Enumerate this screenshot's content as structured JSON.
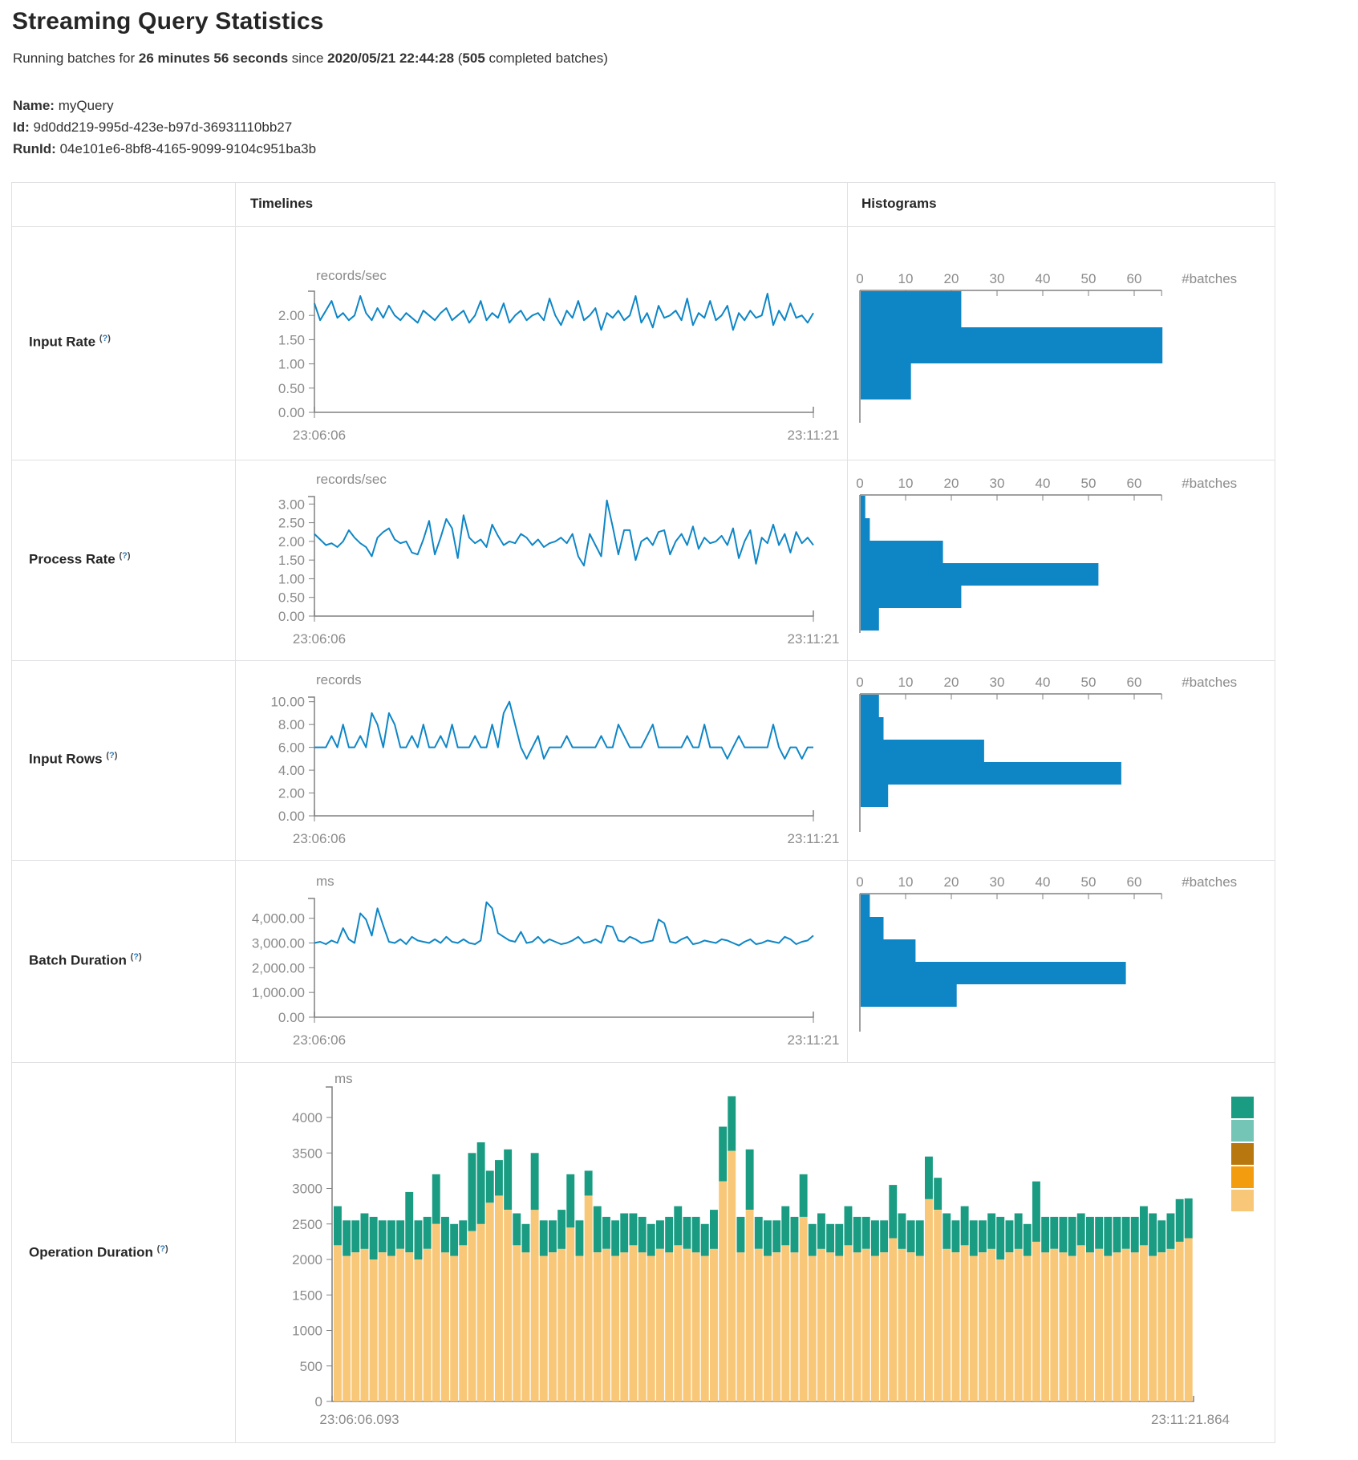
{
  "page": {
    "title": "Streaming Query Statistics",
    "subtitle": {
      "prefix": "Running batches for ",
      "duration": "26 minutes 56 seconds",
      "middle": " since ",
      "since": "2020/05/21 22:44:28",
      "paren_open": " (",
      "completed_count": "505",
      "suffix": " completed batches)"
    },
    "meta": {
      "name_label": "Name:",
      "name_value": "myQuery",
      "id_label": "Id:",
      "id_value": "9d0dd219-995d-423e-b97d-36931110bb27",
      "runid_label": "RunId:",
      "runid_value": "04e101e6-8bf8-4165-9099-9104c951ba3b"
    }
  },
  "table": {
    "col_timelines": "Timelines",
    "col_histograms": "Histograms",
    "help": {
      "open": "(",
      "mark": "?",
      "close": ")"
    },
    "rows": [
      {
        "label": "Input Rate"
      },
      {
        "label": "Process Rate"
      },
      {
        "label": "Input Rows"
      },
      {
        "label": "Batch Duration"
      },
      {
        "label": "Operation Duration"
      }
    ]
  },
  "colors": {
    "line_blue": "#0e86c6",
    "bar_blue": "#0e86c6",
    "axis_gray": "#808080",
    "text_gray": "#8b8b8b",
    "border_gray": "#e1e1e5"
  },
  "chart_data": [
    {
      "row": "Input Rate",
      "timeline": {
        "type": "line",
        "unit": "records/sec",
        "x_start": "23:06:06",
        "x_end": "23:11:21",
        "ylim": [
          0,
          2.5
        ],
        "ytick_values": [
          0,
          0.5,
          1,
          1.5,
          2
        ],
        "ytick_labels": [
          "0.00",
          "0.50",
          "1.00",
          "1.50",
          "2.00"
        ],
        "values": [
          2.25,
          1.9,
          2.1,
          2.3,
          1.95,
          2.05,
          1.9,
          2.0,
          2.4,
          2.05,
          1.9,
          2.15,
          1.95,
          2.2,
          2.0,
          1.9,
          2.05,
          1.95,
          1.85,
          2.1,
          2.0,
          1.9,
          2.05,
          2.15,
          1.9,
          2.0,
          2.1,
          1.85,
          2.0,
          2.3,
          1.9,
          2.05,
          1.95,
          2.25,
          1.85,
          2.0,
          2.1,
          1.9,
          2.0,
          2.05,
          1.9,
          2.35,
          2.0,
          1.8,
          2.1,
          1.95,
          2.3,
          1.9,
          2.0,
          2.15,
          1.7,
          2.05,
          1.95,
          2.1,
          1.9,
          2.0,
          2.4,
          1.85,
          2.05,
          1.75,
          2.2,
          1.95,
          2.0,
          2.1,
          1.9,
          2.35,
          1.8,
          2.05,
          1.95,
          2.3,
          1.9,
          2.0,
          2.2,
          1.7,
          2.05,
          1.9,
          2.1,
          1.95,
          2.0,
          2.45,
          1.8,
          2.1,
          1.9,
          2.25,
          1.95,
          2.0,
          1.85,
          2.05
        ]
      },
      "histogram": {
        "type": "bar",
        "orientation": "horizontal",
        "xlabel": "#batches",
        "xtick_values": [
          0,
          10,
          20,
          30,
          40,
          50,
          60
        ],
        "xtick_labels": [
          "0",
          "10",
          "20",
          "30",
          "40",
          "50",
          "60"
        ],
        "axis_max": 66,
        "values": [
          22,
          66,
          11
        ]
      }
    },
    {
      "row": "Process Rate",
      "timeline": {
        "type": "line",
        "unit": "records/sec",
        "x_start": "23:06:06",
        "x_end": "23:11:21",
        "ylim": [
          0,
          3.2
        ],
        "ytick_values": [
          0,
          0.5,
          1,
          1.5,
          2,
          2.5,
          3
        ],
        "ytick_labels": [
          "0.00",
          "0.50",
          "1.00",
          "1.50",
          "2.00",
          "2.50",
          "3.00"
        ],
        "values": [
          2.2,
          2.05,
          1.9,
          1.95,
          1.85,
          2.0,
          2.3,
          2.1,
          1.95,
          1.85,
          1.6,
          2.1,
          2.25,
          2.35,
          2.05,
          1.95,
          2.0,
          1.7,
          1.65,
          2.05,
          2.55,
          1.65,
          2.1,
          2.6,
          2.35,
          1.55,
          2.7,
          2.1,
          1.95,
          2.05,
          1.85,
          2.45,
          2.15,
          1.9,
          2.0,
          1.95,
          2.2,
          2.1,
          1.9,
          2.05,
          1.85,
          1.95,
          2.0,
          2.1,
          1.95,
          2.2,
          1.6,
          1.35,
          2.2,
          1.9,
          1.6,
          3.1,
          2.4,
          1.65,
          2.3,
          2.3,
          1.5,
          2.0,
          2.1,
          1.9,
          2.25,
          2.3,
          1.65,
          2.0,
          2.2,
          1.9,
          2.4,
          1.8,
          2.1,
          1.95,
          2.0,
          2.15,
          1.9,
          2.35,
          1.55,
          2.0,
          2.3,
          1.4,
          2.1,
          1.95,
          2.45,
          1.9,
          2.2,
          1.7,
          2.25,
          1.95,
          2.1,
          1.9
        ]
      },
      "histogram": {
        "type": "bar",
        "orientation": "horizontal",
        "xlabel": "#batches",
        "xtick_values": [
          0,
          10,
          20,
          30,
          40,
          50,
          60
        ],
        "xtick_labels": [
          "0",
          "10",
          "20",
          "30",
          "40",
          "50",
          "60"
        ],
        "axis_max": 66,
        "values": [
          1,
          2,
          18,
          52,
          22,
          4
        ]
      }
    },
    {
      "row": "Input Rows",
      "timeline": {
        "type": "line",
        "unit": "records",
        "x_start": "23:06:06",
        "x_end": "23:11:21",
        "ylim": [
          0,
          10.4
        ],
        "ytick_values": [
          0,
          2,
          4,
          6,
          8,
          10
        ],
        "ytick_labels": [
          "0.00",
          "2.00",
          "4.00",
          "6.00",
          "8.00",
          "10.00"
        ],
        "values": [
          6,
          6,
          6,
          7,
          6,
          8,
          6,
          6,
          7,
          6,
          9,
          8,
          6,
          9,
          8,
          6,
          6,
          7,
          6,
          8,
          6,
          6,
          7,
          6,
          8,
          6,
          6,
          6,
          7,
          6,
          6,
          8,
          6,
          9,
          10,
          8,
          6,
          5,
          6,
          7,
          5,
          6,
          6,
          6,
          7,
          6,
          6,
          6,
          6,
          6,
          7,
          6,
          6,
          8,
          7,
          6,
          6,
          6,
          7,
          8,
          6,
          6,
          6,
          6,
          6,
          7,
          6,
          6,
          8,
          6,
          6,
          6,
          5,
          6,
          7,
          6,
          6,
          6,
          6,
          6,
          8,
          6,
          5,
          6,
          6,
          5,
          6,
          6
        ]
      },
      "histogram": {
        "type": "bar",
        "orientation": "horizontal",
        "xlabel": "#batches",
        "xtick_values": [
          0,
          10,
          20,
          30,
          40,
          50,
          60
        ],
        "xtick_labels": [
          "0",
          "10",
          "20",
          "30",
          "40",
          "50",
          "60"
        ],
        "axis_max": 66,
        "values": [
          4,
          5,
          27,
          57,
          6
        ]
      }
    },
    {
      "row": "Batch Duration",
      "timeline": {
        "type": "line",
        "unit": "ms",
        "x_start": "23:06:06",
        "x_end": "23:11:21",
        "ylim": [
          0,
          4800
        ],
        "ytick_values": [
          0,
          1000,
          2000,
          3000,
          4000
        ],
        "ytick_labels": [
          "0.00",
          "1,000.00",
          "2,000.00",
          "3,000.00",
          "4,000.00"
        ],
        "values": [
          3000,
          3050,
          2950,
          3100,
          3000,
          3600,
          3150,
          3000,
          4200,
          3950,
          3300,
          4400,
          3700,
          3050,
          3000,
          3150,
          2950,
          3250,
          3100,
          3050,
          3000,
          3150,
          3000,
          3250,
          3050,
          3000,
          3150,
          3000,
          2950,
          3100,
          4650,
          4400,
          3400,
          3250,
          3100,
          3050,
          3450,
          3000,
          3050,
          3250,
          3000,
          3150,
          3050,
          2950,
          3000,
          3100,
          3250,
          3000,
          3050,
          3150,
          3000,
          3700,
          3650,
          3100,
          3050,
          3250,
          3150,
          3000,
          3050,
          3100,
          3950,
          3800,
          3050,
          3000,
          3150,
          3250,
          2950,
          3000,
          3100,
          3050,
          3000,
          3150,
          3100,
          3000,
          2900,
          3050,
          3150,
          2950,
          3000,
          3100,
          3050,
          3000,
          3250,
          3150,
          2950,
          3050,
          3100,
          3300
        ]
      },
      "histogram": {
        "type": "bar",
        "orientation": "horizontal",
        "xlabel": "#batches",
        "xtick_values": [
          0,
          10,
          20,
          30,
          40,
          50,
          60
        ],
        "xtick_labels": [
          "0",
          "10",
          "20",
          "30",
          "40",
          "50",
          "60"
        ],
        "axis_max": 66,
        "values": [
          2,
          5,
          12,
          58,
          21
        ]
      }
    },
    {
      "row": "Operation Duration",
      "stacked": {
        "type": "bar",
        "stacked": true,
        "unit": "ms",
        "x_start": "23:06:06.093",
        "x_end": "23:11:21.864",
        "ylim": [
          0,
          4800
        ],
        "ytick_values": [
          0,
          500,
          1000,
          1500,
          2000,
          2500,
          3000,
          3500,
          4000
        ],
        "ytick_labels": [
          "0",
          "500",
          "1000",
          "1500",
          "2000",
          "2500",
          "3000",
          "3500",
          "4000"
        ],
        "legend_colors": [
          "#1a9c82",
          "#74c5b6",
          "#b9770f",
          "#f49c10",
          "#f8c778"
        ],
        "series": [
          {
            "name": "bottom-tan",
            "color": "#f8c778",
            "values": [
              2200,
              2050,
              2100,
              2150,
              2000,
              2100,
              2050,
              2150,
              2100,
              2000,
              2150,
              2500,
              2100,
              2050,
              2200,
              2400,
              2500,
              2800,
              2900,
              2700,
              2200,
              2100,
              2700,
              2050,
              2100,
              2150,
              2450,
              2050,
              2900,
              2100,
              2150,
              2050,
              2100,
              2200,
              2100,
              2050,
              2150,
              2100,
              2200,
              2150,
              2100,
              2050,
              2150,
              3100,
              3530,
              2100,
              2700,
              2150,
              2050,
              2100,
              2200,
              2100,
              2600,
              2050,
              2150,
              2100,
              2050,
              2200,
              2100,
              2150,
              2050,
              2100,
              2300,
              2150,
              2100,
              2050,
              2850,
              2700,
              2150,
              2100,
              2200,
              2050,
              2100,
              2150,
              2000,
              2100,
              2150,
              2050,
              2250,
              2100,
              2150,
              2100,
              2050,
              2200,
              2100,
              2150,
              2050,
              2100,
              2150,
              2100,
              2200,
              2050,
              2100,
              2150,
              2250,
              2300
            ]
          },
          {
            "name": "top-teal",
            "color": "#1a9c82",
            "values": [
              550,
              500,
              450,
              500,
              600,
              450,
              500,
              400,
              850,
              550,
              450,
              700,
              500,
              450,
              350,
              1100,
              1150,
              450,
              500,
              850,
              450,
              400,
              800,
              500,
              450,
              550,
              750,
              500,
              350,
              650,
              450,
              500,
              550,
              450,
              500,
              450,
              400,
              500,
              550,
              450,
              500,
              450,
              550,
              770,
              770,
              500,
              850,
              450,
              500,
              450,
              550,
              500,
              600,
              450,
              500,
              400,
              450,
              550,
              500,
              450,
              500,
              450,
              750,
              500,
              450,
              500,
              600,
              450,
              500,
              450,
              550,
              500,
              450,
              500,
              600,
              450,
              500,
              450,
              850,
              500,
              450,
              500,
              550,
              450,
              500,
              450,
              550,
              500,
              450,
              500,
              550,
              600,
              450,
              500,
              600,
              560
            ]
          }
        ]
      }
    }
  ]
}
